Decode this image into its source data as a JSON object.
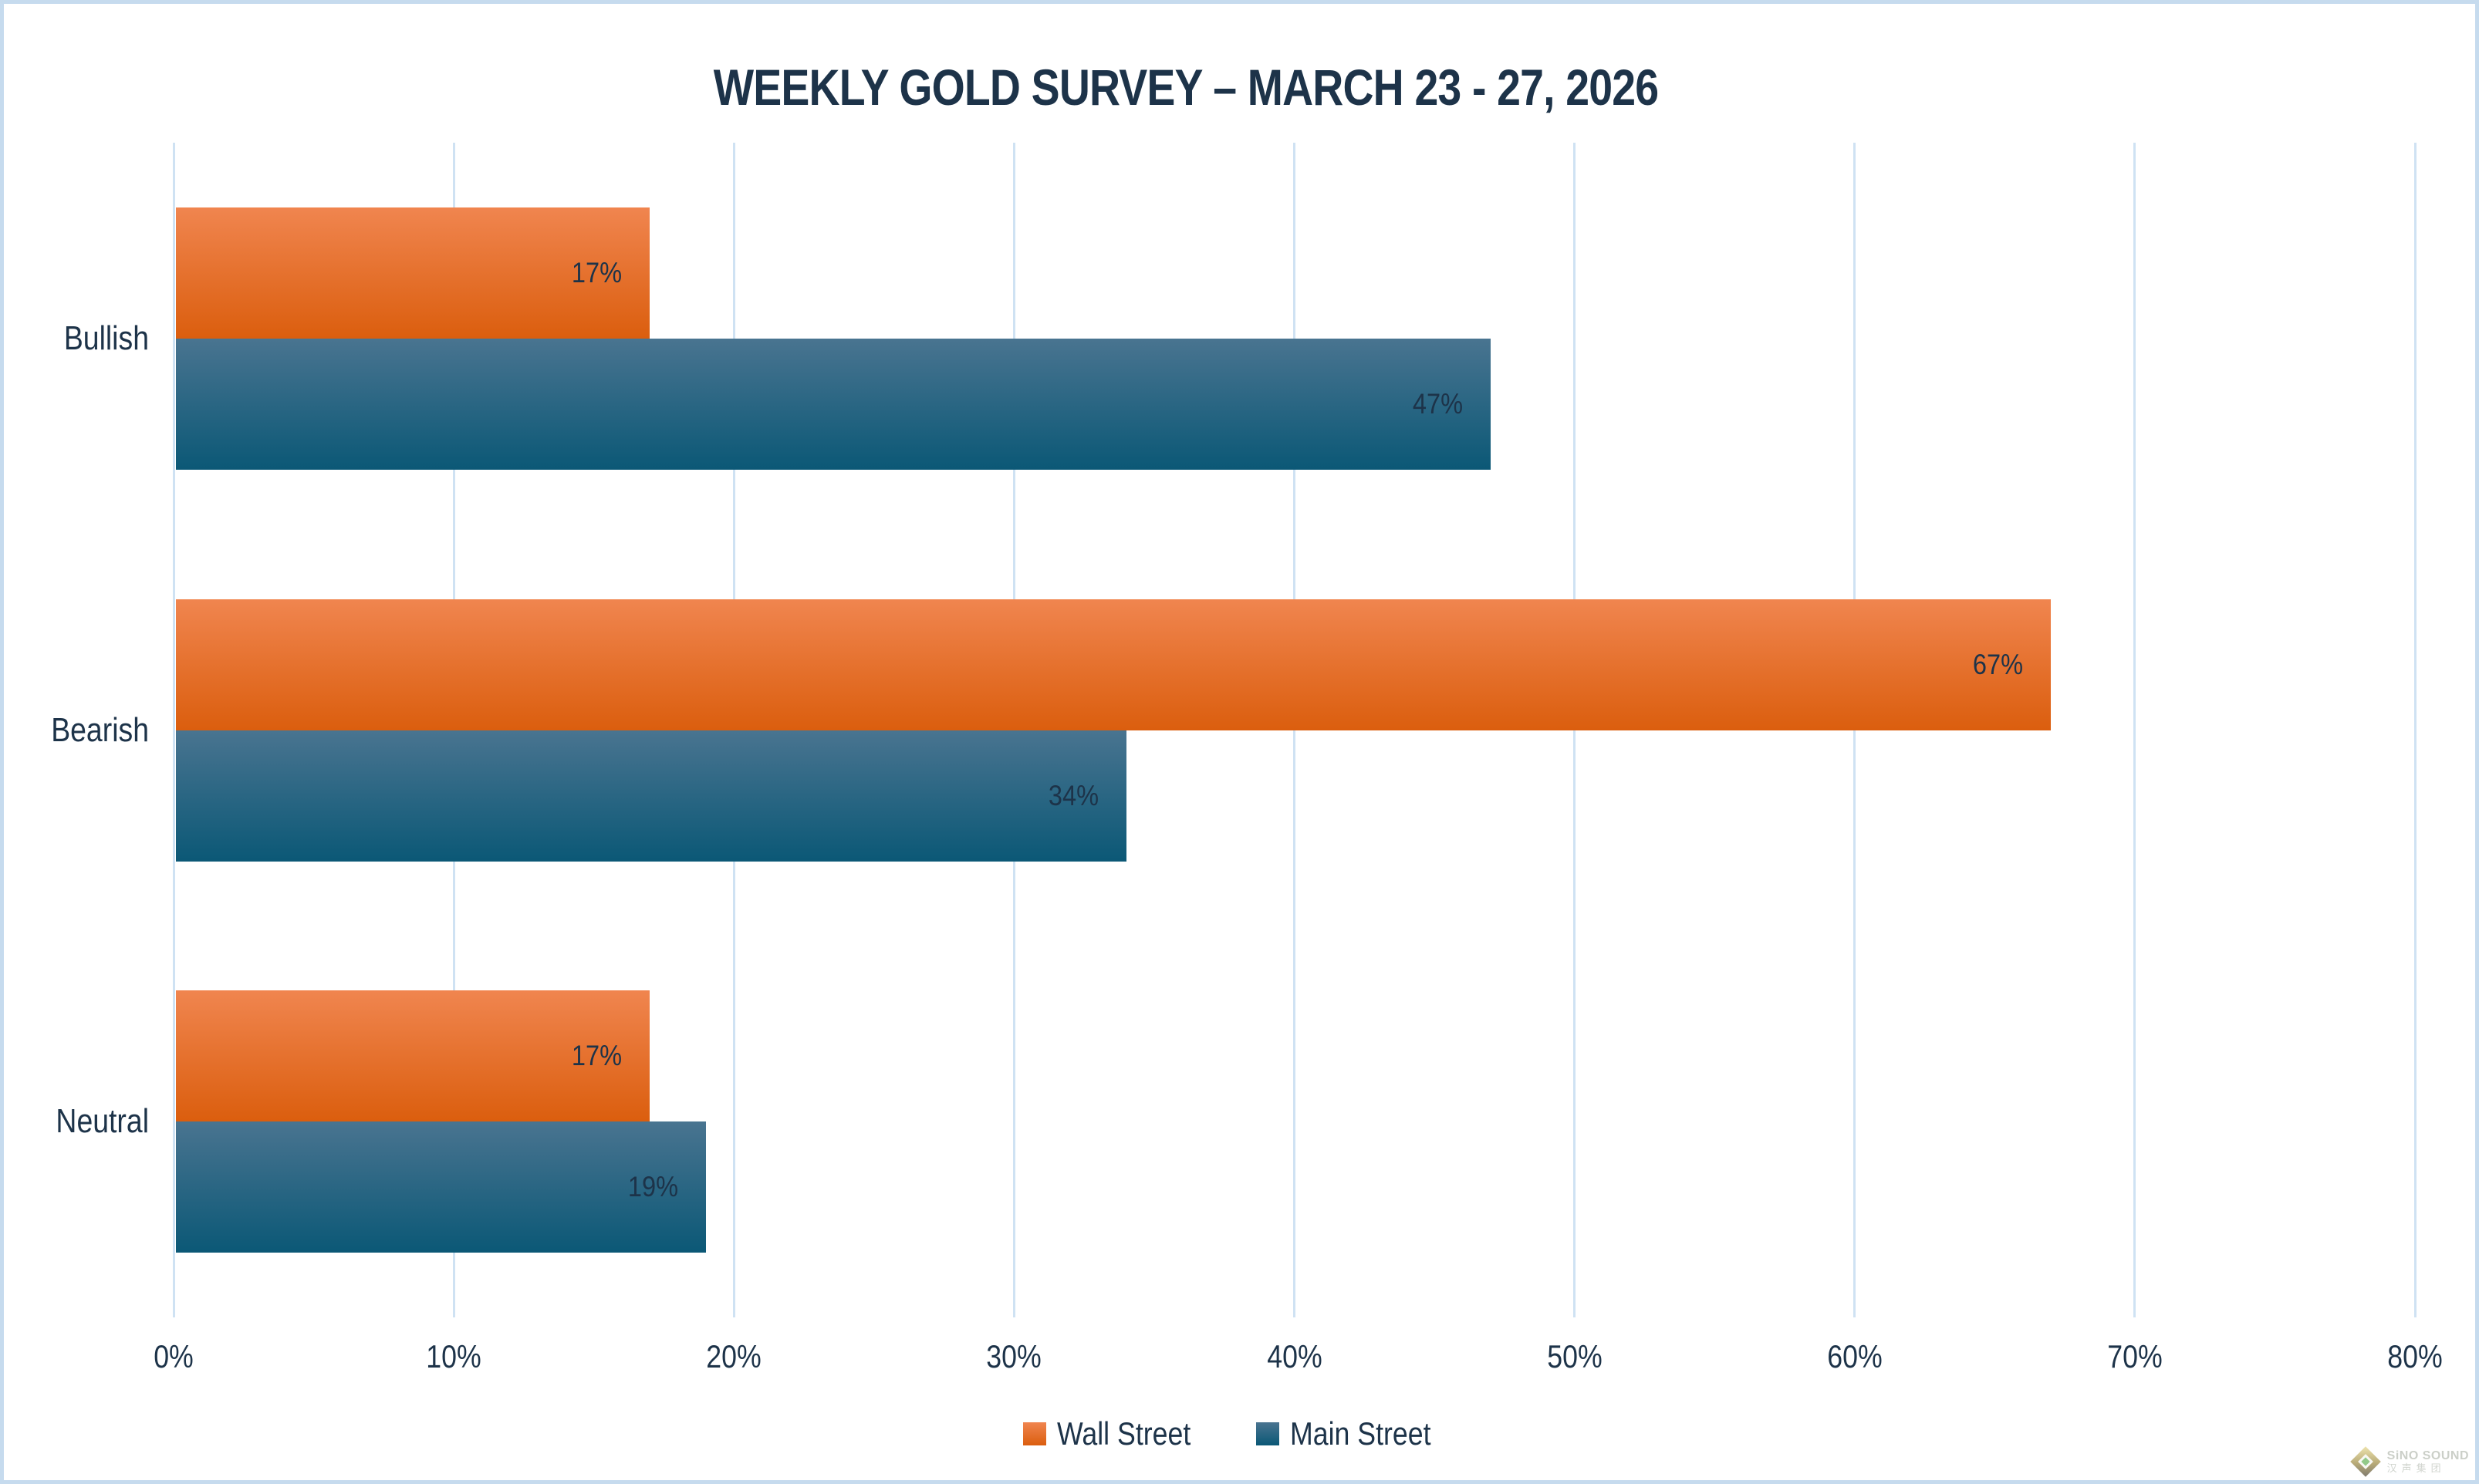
{
  "title": "WEEKLY GOLD SURVEY – MARCH 23 - 27, 2026",
  "chart_data": {
    "type": "bar",
    "orientation": "horizontal",
    "title": "WEEKLY GOLD SURVEY – MARCH 23 - 27, 2026",
    "categories": [
      "Bullish",
      "Bearish",
      "Neutral"
    ],
    "series": [
      {
        "name": "Wall Street",
        "values": [
          17,
          67,
          17
        ],
        "labels": [
          "17%",
          "67%",
          "17%"
        ],
        "color_top": "#f0854f",
        "color_bottom": "#db5e0e"
      },
      {
        "name": "Main Street",
        "values": [
          47,
          34,
          19
        ],
        "labels": [
          "47%",
          "34%",
          "19%"
        ],
        "color_top": "#497490",
        "color_bottom": "#0b5876"
      }
    ],
    "xlim": [
      0,
      80
    ],
    "x_ticks": [
      "0%",
      "10%",
      "20%",
      "30%",
      "40%",
      "50%",
      "60%",
      "70%",
      "80%"
    ],
    "grid": true,
    "legend_position": "bottom",
    "data_labels_position": "inside-end"
  },
  "watermark": {
    "brand": "SiNO SOUND",
    "brand_cn": "汉声集团"
  },
  "colors": {
    "text_navy": "#1d3349",
    "grid_blue": "#cfe2f3",
    "frame_blue": "#c6dbee",
    "background": "#ffffff",
    "wall_street_orange": "#ed7d31",
    "main_street_blue": "#1f5c7f"
  }
}
